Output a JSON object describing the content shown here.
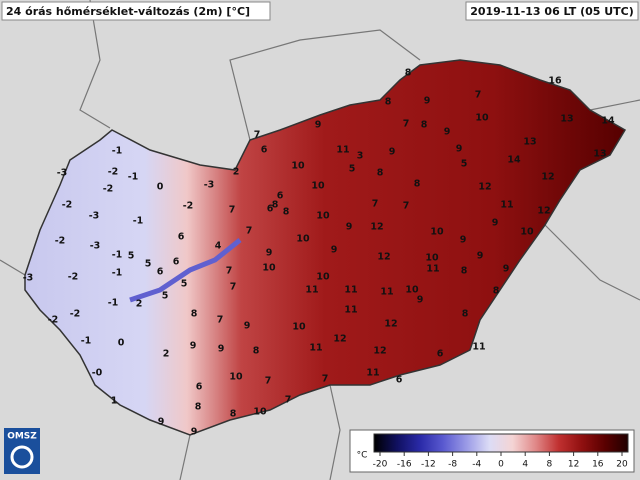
{
  "header": {
    "title": "24 órás hőmérséklet-változás (2m) [°C]",
    "time": "2019-11-13 06 LT (05 UTC)"
  },
  "logo": "OMSZ",
  "stations": [
    -3,
    -1,
    -2,
    -1,
    0,
    -3,
    2,
    -2,
    -2,
    -3,
    -1,
    -2,
    -2,
    -3,
    -1,
    -3,
    -2,
    -1,
    -2,
    -2,
    -1,
    2,
    5,
    -1,
    0,
    {
      "value": 0,
      "label": "-0"
    },
    1,
    9,
    9,
    8,
    6,
    8,
    10,
    10,
    7,
    2,
    9,
    9,
    7,
    8,
    5,
    6,
    6,
    4,
    7,
    7,
    5,
    5,
    6,
    7,
    6,
    10,
    10,
    6,
    8,
    8,
    7,
    6,
    7,
    10,
    10,
    9,
    10,
    9,
    8,
    7,
    10,
    11,
    10,
    11,
    9,
    12,
    12,
    11,
    10,
    11,
    8,
    8,
    12,
    11,
    12,
    11,
    12,
    6,
    11,
    11,
    6,
    7,
    9,
    9,
    11,
    3,
    5,
    8,
    9,
    7,
    7,
    8,
    7,
    8,
    8,
    9,
    8,
    7,
    10,
    9,
    9,
    5,
    12,
    11,
    12,
    12,
    14,
    13,
    13,
    16,
    14,
    13,
    10,
    9,
    9,
    10,
    10,
    9,
    9,
    8,
    9
  ],
  "colorbar": {
    "unit": "°C",
    "range": [
      -20,
      20
    ],
    "ticks": [
      -20,
      -16,
      -12,
      -8,
      -4,
      0,
      4,
      8,
      12,
      16,
      20
    ],
    "colors": [
      "#000000",
      "#101060",
      "#2a2aa8",
      "#5a5ad0",
      "#9a9ae6",
      "#dcdcf6",
      "#f4d4d4",
      "#e08888",
      "#c03030",
      "#901010",
      "#5a0000",
      "#200000"
    ]
  }
}
